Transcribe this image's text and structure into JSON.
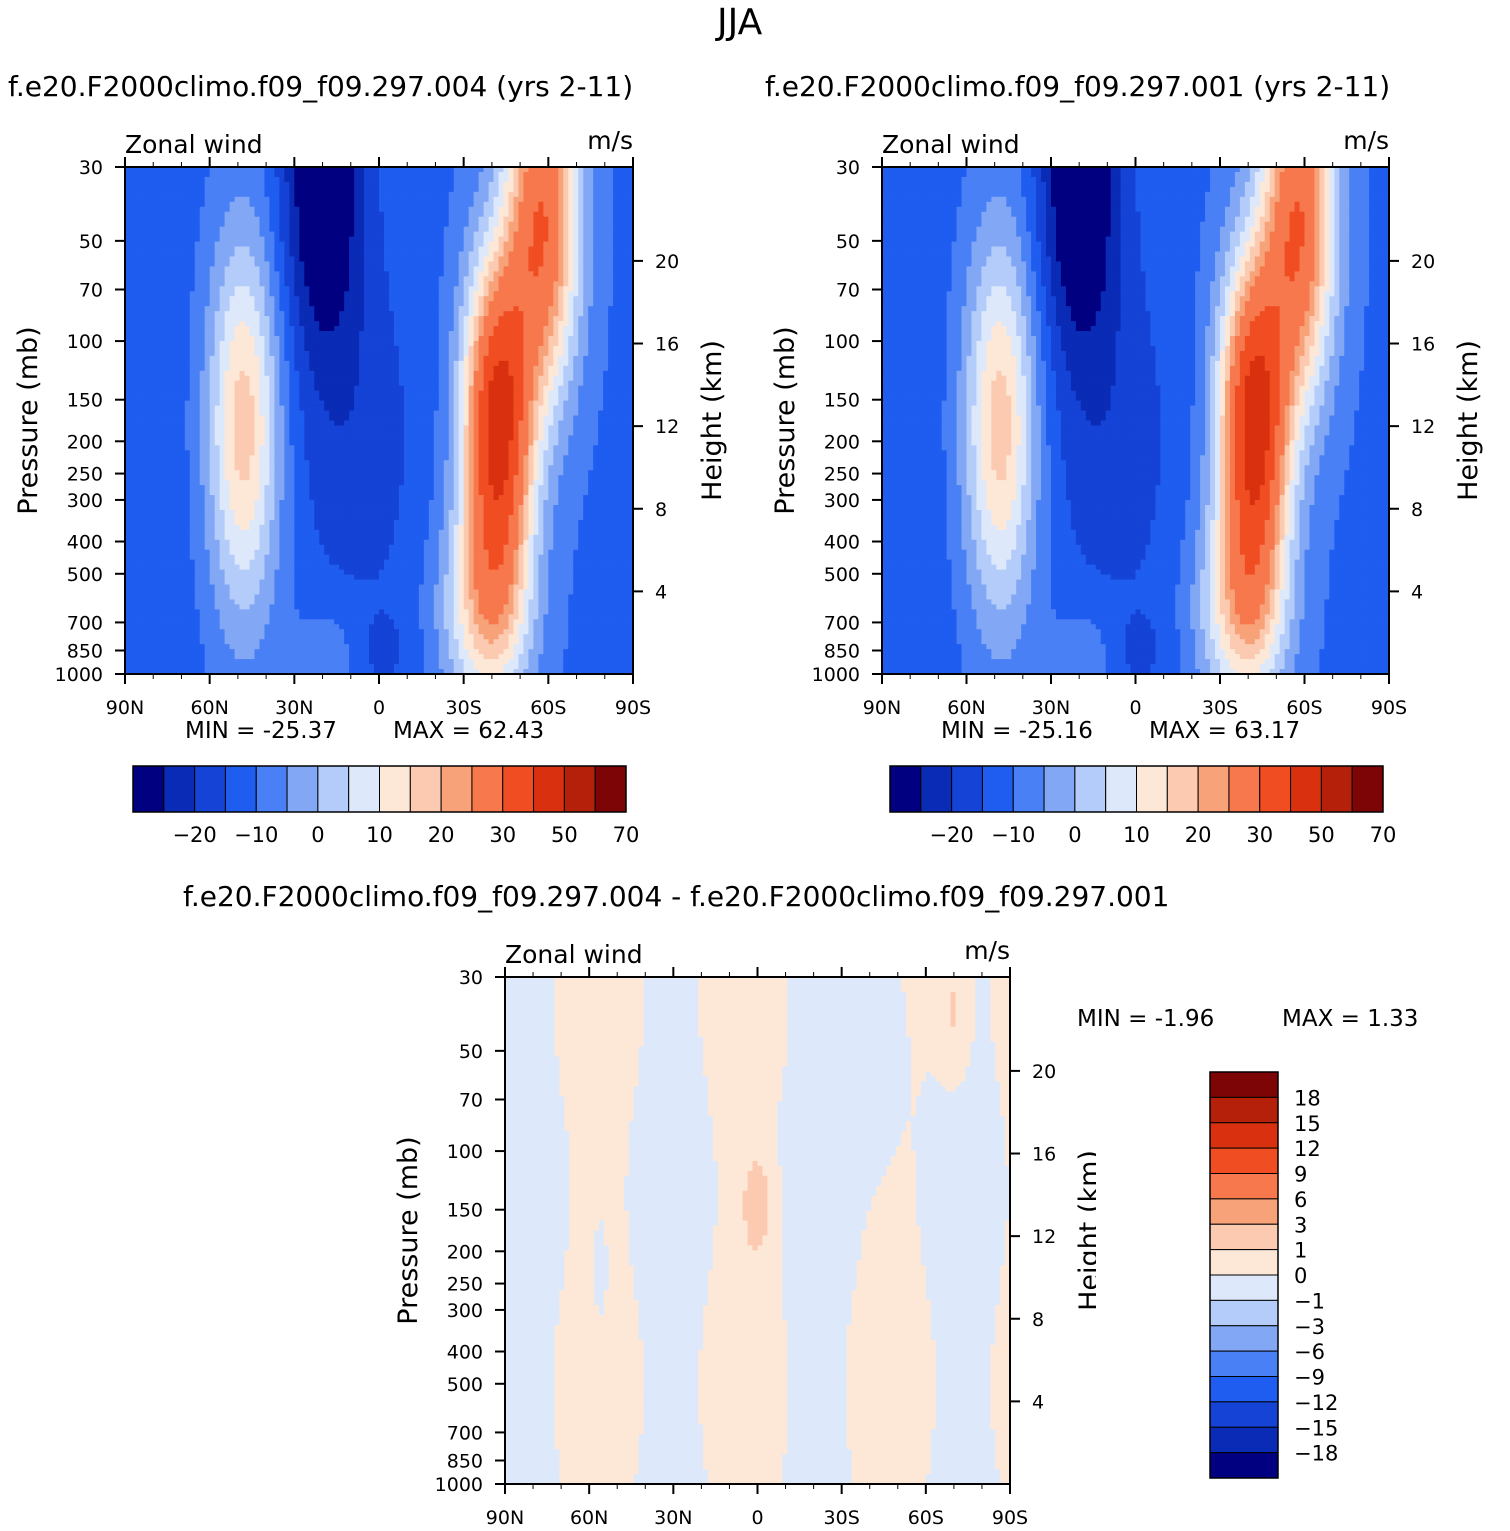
{
  "figure": {
    "season_title": "JJA"
  },
  "palettes": {
    "full": [
      "#000080",
      "#0a2bb5",
      "#1443d6",
      "#1f5cf0",
      "#4a80f5",
      "#82a8f5",
      "#b4ccfa",
      "#dde9fb",
      "#fde8d8",
      "#fbcab0",
      "#f8a27a",
      "#f6784c",
      "#f04e22",
      "#d9300f",
      "#b5200a",
      "#7d0505"
    ],
    "diff": [
      "#000080",
      "#0a2bb5",
      "#1443d6",
      "#1f5cf0",
      "#4a80f5",
      "#82a8f5",
      "#b4ccfa",
      "#dde9fb",
      "#fde8d8",
      "#fbcab0",
      "#f8a27a",
      "#f6784c",
      "#f04e22",
      "#d9300f",
      "#b5200a",
      "#7d0505"
    ]
  },
  "panels": [
    {
      "case_title": "f.e20.F2000climo.f09_f09.297.004 (yrs 2-11)",
      "field_label": "Zonal wind",
      "units": "m/s",
      "ylabel": "Pressure (mb)",
      "ylabel_right": "Height (km)",
      "min_text": "MIN =  -25.37",
      "max_text": "MAX =   62.43",
      "jet_strength": 1.0
    },
    {
      "case_title": "f.e20.F2000climo.f09_f09.297.001 (yrs 2-11)",
      "field_label": "Zonal wind",
      "units": "m/s",
      "ylabel": "Pressure (mb)",
      "ylabel_right": "Height (km)",
      "min_text": "MIN =  -25.16",
      "max_text": "MAX =   63.17",
      "jet_strength": 1.012
    }
  ],
  "difference": {
    "title": "f.e20.F2000climo.f09_f09.297.004 - f.e20.F2000climo.f09_f09.297.001",
    "field_label": "Zonal wind",
    "units": "m/s",
    "ylabel": "Pressure (mb)",
    "ylabel_right": "Height (km)",
    "min_text": "MIN =  -1.96",
    "max_text": "MAX =   1.33"
  },
  "chart_data": [
    {
      "type": "heatmap",
      "title": "f.e20.F2000climo.f09_f09.297.004 (yrs 2-11)",
      "subtitle": "Zonal wind",
      "units": "m/s",
      "xlabel": "",
      "ylabel": "Pressure (mb)",
      "ylabel_right": "Height (km)",
      "x_ticks": [
        "90N",
        "60N",
        "30N",
        "0",
        "30S",
        "60S",
        "90S"
      ],
      "y_ticks": [
        30,
        50,
        70,
        100,
        150,
        200,
        250,
        300,
        400,
        500,
        700,
        850,
        1000
      ],
      "y_ticks_right": [
        4,
        8,
        12,
        16,
        20
      ],
      "ylim": [
        1000,
        30
      ],
      "y_scale": "log",
      "color_levels": [
        -25,
        -20,
        -15,
        -10,
        -5,
        0,
        5,
        10,
        15,
        20,
        25,
        30,
        40,
        50,
        60,
        70,
        80
      ],
      "colorbar_tick_labels": [
        "-20",
        "-10",
        "0",
        "10",
        "20",
        "30",
        "50",
        "70"
      ],
      "min": -25.37,
      "max": 62.43
    },
    {
      "type": "heatmap",
      "title": "f.e20.F2000climo.f09_f09.297.001 (yrs 2-11)",
      "subtitle": "Zonal wind",
      "units": "m/s",
      "xlabel": "",
      "ylabel": "Pressure (mb)",
      "ylabel_right": "Height (km)",
      "x_ticks": [
        "90N",
        "60N",
        "30N",
        "0",
        "30S",
        "60S",
        "90S"
      ],
      "y_ticks": [
        30,
        50,
        70,
        100,
        150,
        200,
        250,
        300,
        400,
        500,
        700,
        850,
        1000
      ],
      "y_ticks_right": [
        4,
        8,
        12,
        16,
        20
      ],
      "ylim": [
        1000,
        30
      ],
      "y_scale": "log",
      "color_levels": [
        -25,
        -20,
        -15,
        -10,
        -5,
        0,
        5,
        10,
        15,
        20,
        25,
        30,
        40,
        50,
        60,
        70,
        80
      ],
      "colorbar_tick_labels": [
        "-20",
        "-10",
        "0",
        "10",
        "20",
        "30",
        "50",
        "70"
      ],
      "min": -25.16,
      "max": 63.17
    },
    {
      "type": "heatmap",
      "title": "f.e20.F2000climo.f09_f09.297.004 - f.e20.F2000climo.f09_f09.297.001",
      "subtitle": "Zonal wind",
      "units": "m/s",
      "xlabel": "",
      "ylabel": "Pressure (mb)",
      "ylabel_right": "Height (km)",
      "x_ticks": [
        "90N",
        "60N",
        "30N",
        "0",
        "30S",
        "60S",
        "90S"
      ],
      "y_ticks": [
        30,
        50,
        70,
        100,
        150,
        200,
        250,
        300,
        400,
        500,
        700,
        850,
        1000
      ],
      "y_ticks_right": [
        4,
        8,
        12,
        16,
        20
      ],
      "ylim": [
        1000,
        30
      ],
      "y_scale": "log",
      "color_levels": [
        -21,
        -18,
        -15,
        -12,
        -9,
        -6,
        -3,
        -1,
        0,
        1,
        3,
        6,
        9,
        12,
        15,
        18,
        21
      ],
      "colorbar_tick_labels": [
        "18",
        "15",
        "12",
        "9",
        "6",
        "3",
        "1",
        "0",
        "-1",
        "-3",
        "-6",
        "-9",
        "-12",
        "-15",
        "-18"
      ],
      "min": -1.96,
      "max": 1.33
    }
  ]
}
